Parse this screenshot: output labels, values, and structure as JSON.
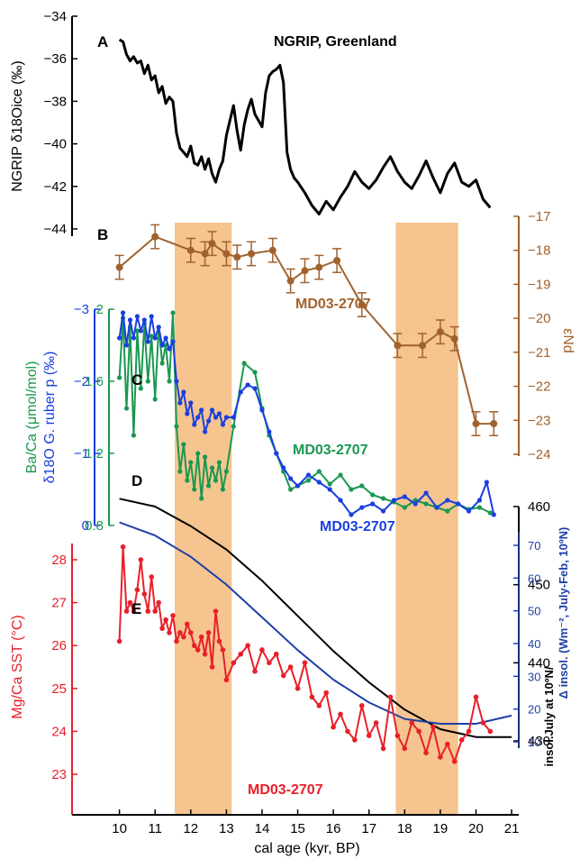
{
  "figure": {
    "x_axis": {
      "label": "cal age (kyr, BP)",
      "ticks": [
        10,
        11,
        12,
        13,
        14,
        15,
        16,
        17,
        18,
        19,
        20,
        21
      ],
      "range": [
        9.05,
        21.2
      ]
    },
    "shaded_intervals": {
      "color": "#f6c48e",
      "ranges": [
        [
          11.55,
          13.15
        ],
        [
          17.75,
          19.5
        ]
      ]
    },
    "colors": {
      "ngrip": "#000000",
      "end": "#a0622d",
      "baca": "#1a9850",
      "d18o": "#1a3fe0",
      "insol_july": "#000000",
      "insol_delta": "#1f3fa8",
      "sst": "#e8202a"
    }
  },
  "chart_data": [
    {
      "id": "A",
      "panel_label": "A",
      "type": "line",
      "title": "NGRIP, Greenland",
      "ylabel": "NGRIP δ18Oice (‰)",
      "ylim": [
        -44,
        -34
      ],
      "yticks": [
        -44,
        -42,
        -40,
        -38,
        -36,
        -34
      ],
      "x": [
        10.0,
        10.1,
        10.2,
        10.3,
        10.4,
        10.5,
        10.6,
        10.7,
        10.8,
        10.9,
        11.0,
        11.1,
        11.2,
        11.3,
        11.4,
        11.5,
        11.6,
        11.7,
        11.8,
        11.9,
        12.0,
        12.1,
        12.2,
        12.3,
        12.4,
        12.5,
        12.6,
        12.7,
        12.8,
        12.9,
        13.0,
        13.1,
        13.2,
        13.3,
        13.4,
        13.5,
        13.6,
        13.7,
        13.8,
        13.9,
        14.0,
        14.1,
        14.2,
        14.3,
        14.4,
        14.5,
        14.6,
        14.7,
        14.8,
        14.9,
        15.0,
        15.2,
        15.4,
        15.6,
        15.8,
        16.0,
        16.2,
        16.4,
        16.6,
        16.8,
        17.0,
        17.2,
        17.4,
        17.6,
        17.8,
        18.0,
        18.2,
        18.4,
        18.6,
        18.8,
        19.0,
        19.2,
        19.4,
        19.6,
        19.8,
        20.0,
        20.2,
        20.4
      ],
      "y": [
        -35.1,
        -35.2,
        -35.8,
        -36.1,
        -35.9,
        -36.2,
        -36.1,
        -36.7,
        -36.3,
        -37.0,
        -36.8,
        -37.6,
        -37.3,
        -38.1,
        -37.8,
        -38.0,
        -39.5,
        -40.2,
        -40.4,
        -40.6,
        -40.1,
        -40.9,
        -41.0,
        -40.6,
        -41.2,
        -40.7,
        -41.4,
        -41.8,
        -41.2,
        -40.8,
        -39.6,
        -38.9,
        -38.2,
        -39.4,
        -40.3,
        -39.1,
        -38.4,
        -37.9,
        -38.6,
        -38.9,
        -39.2,
        -37.6,
        -36.8,
        -36.6,
        -36.5,
        -36.3,
        -37.1,
        -40.4,
        -41.2,
        -41.6,
        -41.8,
        -42.3,
        -42.9,
        -43.3,
        -42.7,
        -43.1,
        -42.5,
        -42.0,
        -41.3,
        -41.8,
        -42.1,
        -41.7,
        -41.1,
        -40.6,
        -41.3,
        -41.8,
        -42.1,
        -41.5,
        -40.8,
        -41.6,
        -42.3,
        -41.4,
        -40.9,
        -41.8,
        -42.0,
        -41.7,
        -42.6,
        -43.0
      ]
    },
    {
      "id": "B",
      "panel_label": "B",
      "type": "line",
      "series_label": "MD03-2707",
      "ylabel": "εNd",
      "ylim": [
        -24,
        -17
      ],
      "yticks": [
        -24,
        -23,
        -22,
        -21,
        -20,
        -19,
        -18,
        -17
      ],
      "x": [
        10.0,
        11.0,
        12.0,
        12.4,
        12.6,
        13.0,
        13.3,
        13.7,
        14.3,
        14.8,
        15.2,
        15.6,
        16.1,
        16.8,
        17.8,
        18.5,
        19.0,
        19.4,
        20.0,
        20.5
      ],
      "y": [
        -18.5,
        -17.6,
        -18.0,
        -18.1,
        -17.8,
        -18.1,
        -18.2,
        -18.1,
        -18.0,
        -18.9,
        -18.6,
        -18.5,
        -18.3,
        -19.6,
        -20.8,
        -20.8,
        -20.4,
        -20.6,
        -23.1,
        -23.1
      ],
      "error": 0.35
    },
    {
      "id": "C_BaCa",
      "panel_label": "C",
      "type": "line",
      "series_label": "MD03-2707",
      "ylabel": "Ba/Ca (μmol/mol)",
      "ylim": [
        0.8,
        2.0
      ],
      "yticks": [
        0.8,
        1.2,
        1.6,
        2.0
      ],
      "x": [
        10.0,
        10.1,
        10.2,
        10.3,
        10.4,
        10.5,
        10.6,
        10.7,
        10.8,
        10.9,
        11.0,
        11.1,
        11.2,
        11.3,
        11.4,
        11.5,
        11.6,
        11.7,
        11.8,
        11.9,
        12.0,
        12.1,
        12.2,
        12.3,
        12.4,
        12.5,
        12.6,
        12.7,
        12.8,
        12.9,
        13.0,
        13.2,
        13.5,
        13.8,
        14.0,
        14.2,
        14.4,
        14.6,
        14.8,
        15.0,
        15.3,
        15.6,
        15.9,
        16.2,
        16.5,
        16.8,
        17.1,
        17.4,
        17.7,
        18.0,
        18.3,
        18.6,
        18.9,
        19.2,
        19.5,
        19.8,
        20.1,
        20.4
      ],
      "y": [
        1.62,
        1.95,
        1.45,
        1.9,
        1.3,
        1.88,
        1.56,
        1.92,
        1.6,
        1.85,
        1.5,
        1.9,
        1.7,
        1.8,
        1.6,
        1.98,
        1.35,
        1.1,
        1.25,
        1.05,
        1.15,
        1.0,
        1.2,
        0.95,
        1.18,
        1.02,
        1.12,
        1.05,
        1.15,
        1.0,
        1.1,
        1.35,
        1.7,
        1.65,
        1.45,
        1.3,
        1.2,
        1.1,
        1.0,
        1.02,
        1.05,
        1.1,
        1.03,
        1.08,
        1.0,
        1.02,
        0.97,
        0.95,
        0.93,
        0.9,
        0.94,
        0.92,
        0.9,
        0.88,
        0.92,
        0.89,
        0.9,
        0.87
      ]
    },
    {
      "id": "C_d18O",
      "type": "line",
      "series_label": "MD03-2707",
      "ylabel": "δ18O G. ruber p (‰)",
      "ylim": [
        0,
        -3
      ],
      "yticks": [
        0,
        -1,
        -2,
        -3
      ],
      "x": [
        10.0,
        10.1,
        10.2,
        10.3,
        10.4,
        10.5,
        10.6,
        10.7,
        10.8,
        10.9,
        11.0,
        11.1,
        11.2,
        11.3,
        11.4,
        11.5,
        11.6,
        11.7,
        11.8,
        11.9,
        12.0,
        12.1,
        12.2,
        12.3,
        12.4,
        12.5,
        12.6,
        12.7,
        12.8,
        12.9,
        13.0,
        13.2,
        13.4,
        13.6,
        13.8,
        14.0,
        14.2,
        14.4,
        14.6,
        14.8,
        15.0,
        15.3,
        15.6,
        15.9,
        16.2,
        16.5,
        16.8,
        17.1,
        17.4,
        17.7,
        18.0,
        18.3,
        18.6,
        18.9,
        19.2,
        19.5,
        19.8,
        20.1,
        20.3,
        20.5
      ],
      "y": [
        -2.6,
        -2.95,
        -2.5,
        -2.85,
        -2.6,
        -2.9,
        -2.7,
        -2.85,
        -2.55,
        -2.9,
        -2.6,
        -2.75,
        -2.5,
        -2.6,
        -2.45,
        -2.55,
        -2.0,
        -1.7,
        -1.85,
        -1.55,
        -1.7,
        -1.4,
        -1.5,
        -1.6,
        -1.3,
        -1.45,
        -1.6,
        -1.5,
        -1.55,
        -1.4,
        -1.5,
        -1.5,
        -1.85,
        -1.95,
        -1.9,
        -1.6,
        -1.3,
        -1.0,
        -0.8,
        -0.65,
        -0.55,
        -0.7,
        -0.6,
        -0.5,
        -0.35,
        -0.15,
        -0.25,
        -0.3,
        -0.2,
        -0.35,
        -0.4,
        -0.3,
        -0.45,
        -0.25,
        -0.35,
        -0.3,
        -0.2,
        -0.35,
        -0.6,
        -0.15
      ]
    },
    {
      "id": "D",
      "panel_label": "D",
      "type": "line",
      "ylabel_right_black": "insol.July at 10ºN/",
      "ylabel_right_blue": "Δ insol. (Wm⁻², July-Feb, 10ºN)",
      "ylabel_right_black_ylim": [
        430,
        460
      ],
      "yticks_black": [
        430,
        440,
        450,
        460
      ],
      "yticks_blue": [
        10,
        20,
        30,
        40,
        50,
        60,
        70
      ],
      "series_black": {
        "x": [
          10,
          11,
          12,
          13,
          14,
          15,
          16,
          17,
          18,
          19,
          20,
          21
        ],
        "y": [
          461,
          460,
          457.5,
          454.5,
          450.5,
          446,
          441.5,
          437.5,
          434,
          431.5,
          430.5,
          430.5
        ]
      },
      "series_blue": {
        "x": [
          10,
          11,
          12,
          13,
          14,
          15,
          16,
          17,
          18,
          19,
          20,
          21
        ],
        "y": [
          77,
          73,
          66.5,
          58,
          48,
          38,
          29,
          22,
          17,
          15.5,
          15.5,
          18
        ]
      }
    },
    {
      "id": "E",
      "panel_label": "E",
      "type": "line",
      "series_label": "MD03-2707",
      "ylabel": "Mg/Ca SST (°C)",
      "ylim": [
        23,
        28
      ],
      "yticks": [
        23,
        24,
        25,
        26,
        27,
        28
      ],
      "x": [
        10.0,
        10.1,
        10.2,
        10.3,
        10.4,
        10.5,
        10.6,
        10.7,
        10.8,
        10.9,
        11.0,
        11.1,
        11.2,
        11.3,
        11.4,
        11.5,
        11.6,
        11.7,
        11.8,
        11.9,
        12.0,
        12.1,
        12.2,
        12.3,
        12.4,
        12.5,
        12.6,
        12.7,
        12.8,
        12.9,
        13.0,
        13.2,
        13.4,
        13.6,
        13.8,
        14.0,
        14.2,
        14.4,
        14.6,
        14.8,
        15.0,
        15.2,
        15.4,
        15.6,
        15.8,
        16.0,
        16.2,
        16.4,
        16.6,
        16.8,
        17.0,
        17.2,
        17.4,
        17.6,
        17.8,
        18.0,
        18.2,
        18.4,
        18.6,
        18.8,
        19.0,
        19.2,
        19.4,
        19.6,
        19.8,
        20.0,
        20.2,
        20.4
      ],
      "y": [
        26.1,
        28.3,
        26.8,
        27.0,
        26.8,
        27.3,
        28.0,
        27.2,
        26.8,
        27.6,
        26.8,
        27.0,
        26.4,
        26.6,
        26.3,
        26.7,
        26.1,
        26.3,
        26.2,
        26.5,
        26.3,
        26.0,
        25.9,
        26.2,
        25.8,
        26.3,
        25.5,
        26.8,
        26.1,
        25.9,
        25.2,
        25.6,
        25.8,
        26.0,
        25.4,
        25.9,
        25.6,
        25.8,
        25.3,
        25.5,
        25.0,
        25.6,
        24.8,
        24.6,
        24.9,
        24.1,
        24.4,
        24.0,
        23.8,
        24.6,
        23.9,
        24.2,
        23.6,
        24.8,
        23.9,
        23.6,
        24.2,
        24.0,
        23.5,
        24.1,
        23.4,
        23.7,
        23.3,
        23.8,
        24.0,
        24.8,
        24.2,
        24.0
      ]
    }
  ]
}
